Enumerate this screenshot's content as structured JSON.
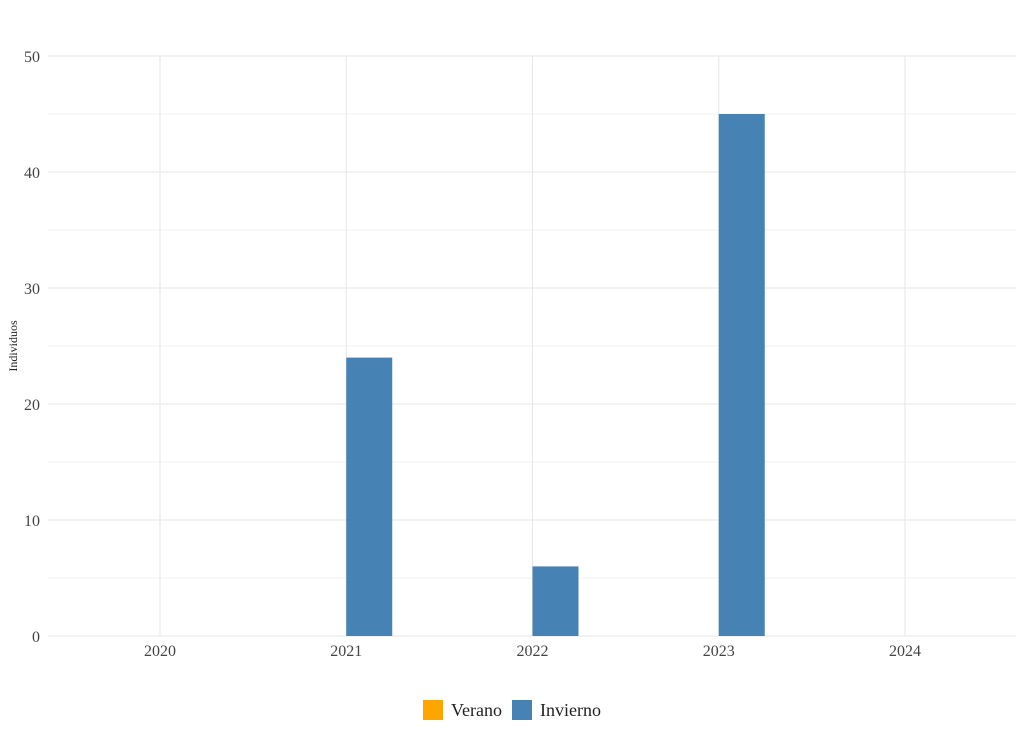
{
  "chart_data": {
    "type": "bar",
    "title": "",
    "xlabel": "",
    "ylabel": "Individuos",
    "categories": [
      "2020",
      "2021",
      "2022",
      "2023",
      "2024"
    ],
    "ylim": [
      0,
      50
    ],
    "yticks": [
      0,
      10,
      20,
      30,
      40,
      50
    ],
    "grid": true,
    "legend_position": "bottom",
    "series": [
      {
        "name": "Verano",
        "color": "#FFA500",
        "values": [
          0,
          0,
          0,
          0,
          0
        ]
      },
      {
        "name": "Invierno",
        "color": "#4682B4",
        "values": [
          0,
          24,
          6,
          45,
          0
        ]
      }
    ]
  }
}
